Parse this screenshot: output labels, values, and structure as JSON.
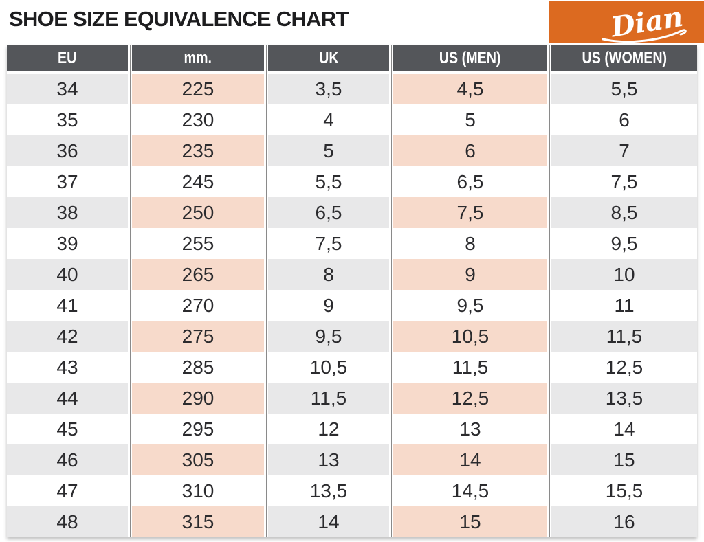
{
  "page": {
    "title": "SHOE SIZE EQUIVALENCE CHART",
    "brand": "Dian"
  },
  "colors": {
    "header_bg": "#54565a",
    "row_gray": "#e8e8e9",
    "row_pink": "#f7dacb",
    "brand_orange": "#dc6a20",
    "text": "#2b2b2e",
    "separator": "#8a8a8a"
  },
  "table": {
    "headers": [
      "EU",
      "mm.",
      "UK",
      "US (MEN)",
      "US (WOMEN)"
    ],
    "rows": [
      [
        "34",
        "225",
        "3,5",
        "4,5",
        "5,5"
      ],
      [
        "35",
        "230",
        "4",
        "5",
        "6"
      ],
      [
        "36",
        "235",
        "5",
        "6",
        "7"
      ],
      [
        "37",
        "245",
        "5,5",
        "6,5",
        "7,5"
      ],
      [
        "38",
        "250",
        "6,5",
        "7,5",
        "8,5"
      ],
      [
        "39",
        "255",
        "7,5",
        "8",
        "9,5"
      ],
      [
        "40",
        "265",
        "8",
        "9",
        "10"
      ],
      [
        "41",
        "270",
        "9",
        "9,5",
        "11"
      ],
      [
        "42",
        "275",
        "9,5",
        "10,5",
        "11,5"
      ],
      [
        "43",
        "285",
        "10,5",
        "11,5",
        "12,5"
      ],
      [
        "44",
        "290",
        "11,5",
        "12,5",
        "13,5"
      ],
      [
        "45",
        "295",
        "12",
        "13",
        "14"
      ],
      [
        "46",
        "305",
        "13",
        "14",
        "15"
      ],
      [
        "47",
        "310",
        "13,5",
        "14,5",
        "15,5"
      ],
      [
        "48",
        "315",
        "14",
        "15",
        "16"
      ]
    ]
  },
  "chart_data": {
    "type": "table",
    "title": "SHOE SIZE EQUIVALENCE CHART",
    "columns": [
      "EU",
      "mm.",
      "UK",
      "US (MEN)",
      "US (WOMEN)"
    ],
    "rows": [
      [
        34,
        225,
        "3,5",
        "4,5",
        "5,5"
      ],
      [
        35,
        230,
        "4",
        "5",
        "6"
      ],
      [
        36,
        235,
        "5",
        "6",
        "7"
      ],
      [
        37,
        245,
        "5,5",
        "6,5",
        "7,5"
      ],
      [
        38,
        250,
        "6,5",
        "7,5",
        "8,5"
      ],
      [
        39,
        255,
        "7,5",
        "8",
        "9,5"
      ],
      [
        40,
        265,
        "8",
        "9",
        "10"
      ],
      [
        41,
        270,
        "9",
        "9,5",
        "11"
      ],
      [
        42,
        275,
        "9,5",
        "10,5",
        "11,5"
      ],
      [
        43,
        285,
        "10,5",
        "11,5",
        "12,5"
      ],
      [
        44,
        290,
        "11,5",
        "12,5",
        "13,5"
      ],
      [
        45,
        295,
        "12",
        "13",
        "14"
      ],
      [
        46,
        305,
        "13",
        "14",
        "15"
      ],
      [
        47,
        310,
        "13,5",
        "14,5",
        "15,5"
      ],
      [
        48,
        315,
        "14",
        "15",
        "16"
      ]
    ],
    "layout_hints": {
      "shaded_row_parity": "odd EU sizes (34,36,38...) shaded",
      "pink_columns": [
        "mm.",
        "US (MEN)"
      ],
      "gray_columns": [
        "EU",
        "UK",
        "US (WOMEN)"
      ]
    }
  }
}
